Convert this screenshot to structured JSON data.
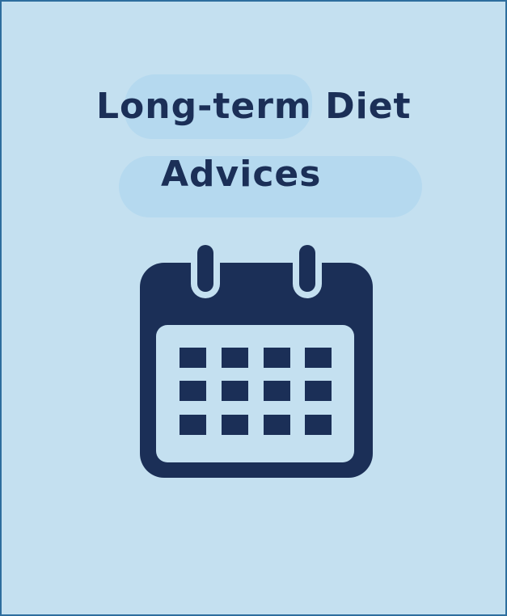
{
  "title": {
    "line1": "Long-term Diet",
    "line2": "Advices"
  },
  "icon": {
    "name": "calendar-icon",
    "color": "#1b2f57"
  },
  "colors": {
    "background": "#c4e0f0",
    "highlight": "#b5d9ef",
    "border": "#2e6e9e",
    "text": "#1b2f57"
  }
}
